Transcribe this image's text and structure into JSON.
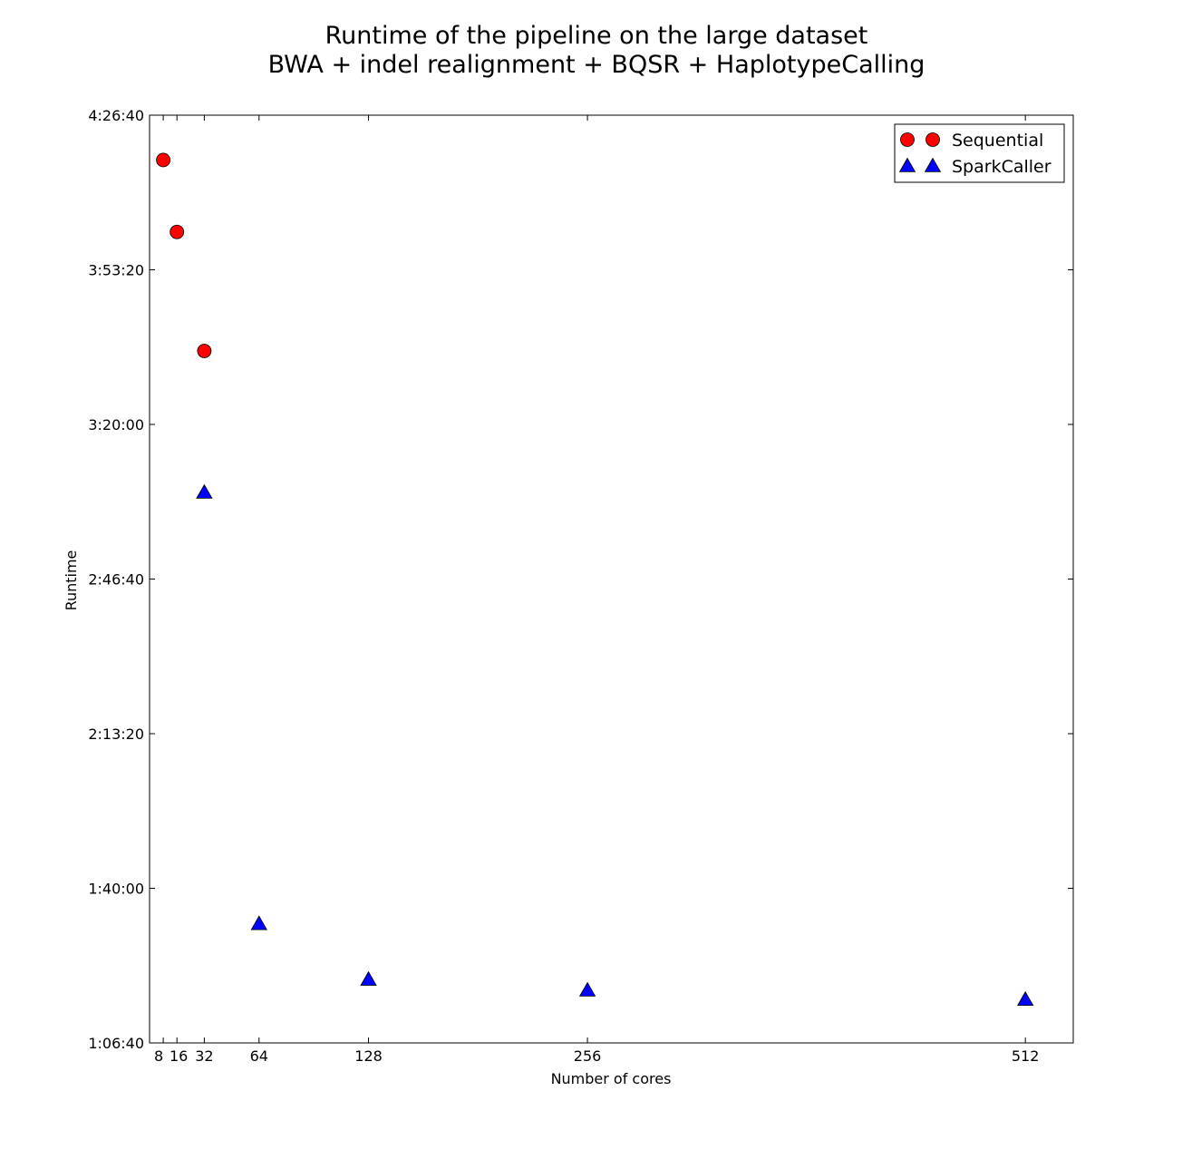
{
  "chart_data": {
    "type": "scatter",
    "title": "Runtime of the pipeline on the large dataset",
    "subtitle": "BWA + indel realignment + BQSR + HaplotypeCalling",
    "xlabel": "Number of cores",
    "ylabel": "Runtime",
    "xlim": [
      0,
      540
    ],
    "ylim": [
      4000,
      16000
    ],
    "x_ticks": [
      8,
      16,
      32,
      64,
      128,
      256,
      512
    ],
    "x_tick_labels": [
      "8",
      "16",
      "32",
      "64",
      "128",
      "256",
      "512"
    ],
    "y_ticks": [
      4000,
      6000,
      8000,
      10000,
      12000,
      14000,
      16000
    ],
    "y_tick_labels": [
      "1:06:40",
      "1:40:00",
      "2:13:20",
      "2:46:40",
      "3:20:00",
      "3:53:20",
      "4:26:40"
    ],
    "y_unit": "seconds",
    "grid": false,
    "legend_position": "top-right",
    "series": [
      {
        "name": "Sequential",
        "marker": "circle",
        "color": "#ff0000",
        "x": [
          8,
          16,
          32
        ],
        "y": [
          15420,
          14490,
          12950
        ]
      },
      {
        "name": "SparkCaller",
        "marker": "triangle",
        "color": "#0000ff",
        "x": [
          32,
          64,
          128,
          256,
          512
        ],
        "y": [
          11120,
          5540,
          4820,
          4680,
          4560
        ]
      }
    ]
  }
}
